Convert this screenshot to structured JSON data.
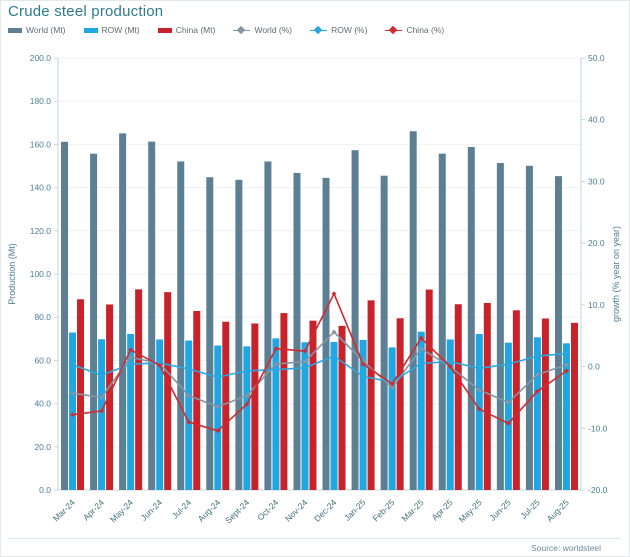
{
  "header": {
    "title": "Crude steel production"
  },
  "footer": {
    "source": "Source: worldsteel"
  },
  "colors": {
    "title": "#2e7a8c",
    "tick_label": "#4a7f92",
    "axis_title": "#4a7f92",
    "legend_text": "#5f6b73",
    "grid": "#eef1f3",
    "axis_line": "#c9d4da",
    "x_label": "#43727f",
    "source_text": "#6b8a99"
  },
  "chart_data": {
    "type": "bar",
    "subtype": "combo-bar-line-dual-axis",
    "title": "Crude steel production",
    "source": "Source: worldsteel",
    "categories": [
      "Mar-24",
      "Apr-24",
      "May-24",
      "Jun-24",
      "Jul-24",
      "Aug-24",
      "Sept-24",
      "Oct-24",
      "Nov-24",
      "Dec-24",
      "Jan-25",
      "Feb-25",
      "Mar-25",
      "Apr-25",
      "May-25",
      "Jun-25",
      "Jul-25",
      "Aug-25"
    ],
    "series": [
      {
        "name": "World (Mt)",
        "kind": "bar",
        "axis": "left",
        "color": "#5d7f94",
        "values": [
          161.2,
          155.7,
          165.1,
          161.3,
          152.1,
          144.8,
          143.6,
          152.1,
          146.8,
          144.5,
          157.3,
          145.5,
          166.1,
          155.7,
          158.8,
          151.4,
          150.1,
          145.3
        ]
      },
      {
        "name": "ROW (Mt)",
        "kind": "bar",
        "axis": "left",
        "color": "#20a6e0",
        "values": [
          72.9,
          69.8,
          72.2,
          69.7,
          69.2,
          66.9,
          66.5,
          70.2,
          68.4,
          68.5,
          69.5,
          66.0,
          73.3,
          69.7,
          72.2,
          68.2,
          70.7,
          67.9
        ]
      },
      {
        "name": "China (Mt)",
        "kind": "bar",
        "axis": "left",
        "color": "#c8232b",
        "values": [
          88.3,
          85.9,
          92.9,
          91.6,
          82.9,
          77.9,
          77.1,
          81.9,
          78.4,
          76.0,
          87.8,
          79.5,
          92.8,
          86.0,
          86.6,
          83.2,
          79.4,
          77.4
        ]
      },
      {
        "name": "World (%)",
        "kind": "line",
        "axis": "right",
        "color": "#8296a4",
        "values": [
          -4.3,
          -5.0,
          1.5,
          0.5,
          -4.7,
          -6.5,
          -4.7,
          0.4,
          0.8,
          5.6,
          0.9,
          -3.4,
          2.9,
          0.0,
          -3.8,
          -5.8,
          -1.3,
          0.3
        ]
      },
      {
        "name": "ROW (%)",
        "kind": "line",
        "axis": "right",
        "color": "#29a8e0",
        "values": [
          0.3,
          -1.4,
          0.4,
          0.6,
          -0.4,
          -1.7,
          -0.7,
          -0.5,
          -0.2,
          1.7,
          -1.6,
          -2.5,
          0.5,
          0.8,
          -0.3,
          0.4,
          1.7,
          2.1
        ]
      },
      {
        "name": "China (%)",
        "kind": "line",
        "axis": "right",
        "color": "#d22b2f",
        "values": [
          -7.8,
          -7.2,
          2.7,
          0.2,
          -9.0,
          -10.4,
          -6.1,
          2.9,
          2.5,
          11.8,
          0.4,
          -2.8,
          4.6,
          0.0,
          -6.9,
          -9.2,
          -4.0,
          -0.7
        ]
      }
    ],
    "ylabel_left": "Production (Mt)",
    "ylabel_right": "growth (% year on year)",
    "ylim_left": [
      0,
      200
    ],
    "ytick_step_left": 20,
    "ytick_labels_left": [
      "0.0",
      "20.0",
      "40.0",
      "60.0",
      "80.0",
      "100.0",
      "120.0",
      "140.0",
      "160.0",
      "180.0",
      "200.0"
    ],
    "ylim_right": [
      -20,
      50
    ],
    "ytick_step_right": 10,
    "ytick_labels_right": [
      "-20.0",
      "-10.0",
      "0.0",
      "10.0",
      "20.0",
      "30.0",
      "40.0",
      "50.0"
    ],
    "grid": true,
    "legend_position": "top"
  }
}
